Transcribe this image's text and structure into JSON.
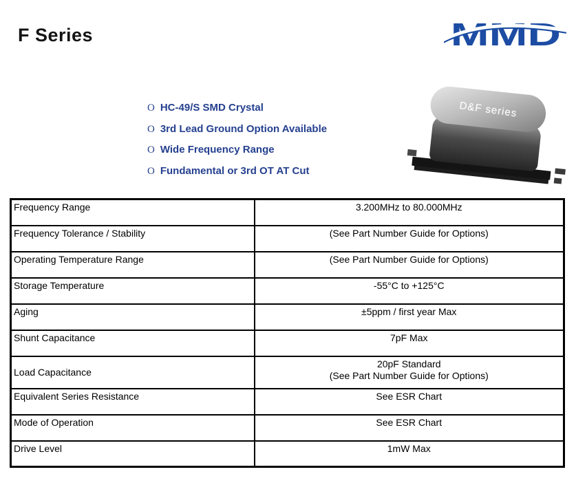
{
  "header": {
    "title": "F Series",
    "logo_text": "MMD"
  },
  "features": {
    "bullet_glyph": "O",
    "items": [
      "HC-49/S SMD Crystal",
      "3rd Lead Ground Option Available",
      "Wide Frequency Range",
      "Fundamental or 3rd OT AT Cut"
    ]
  },
  "product_photo": {
    "caption": "D&F series"
  },
  "spec_table": {
    "rows": [
      {
        "param": "Frequency Range",
        "value": [
          "3.200MHz to 80.000MHz"
        ]
      },
      {
        "param": "Frequency Tolerance / Stability",
        "value": [
          "(See Part Number Guide for Options)"
        ]
      },
      {
        "param": "Operating Temperature Range",
        "value": [
          "(See Part Number Guide for Options)"
        ]
      },
      {
        "param": "Storage Temperature",
        "value": [
          "-55°C to +125°C"
        ]
      },
      {
        "param": "Aging",
        "value": [
          "±5ppm / first year Max"
        ]
      },
      {
        "param": "Shunt Capacitance",
        "value": [
          "7pF Max"
        ]
      },
      {
        "param": "Load Capacitance",
        "value": [
          "20pF Standard",
          "(See Part Number Guide for Options)"
        ]
      },
      {
        "param": "Equivalent Series Resistance",
        "value": [
          "See ESR Chart"
        ]
      },
      {
        "param": "Mode of Operation",
        "value": [
          "See ESR Chart"
        ]
      },
      {
        "param": "Drive Level",
        "value": [
          "1mW Max"
        ]
      }
    ]
  },
  "colors": {
    "feature_text": "#25408f",
    "logo_blue": "#1c4ca3",
    "title_text": "#141414",
    "table_border": "#000000"
  }
}
